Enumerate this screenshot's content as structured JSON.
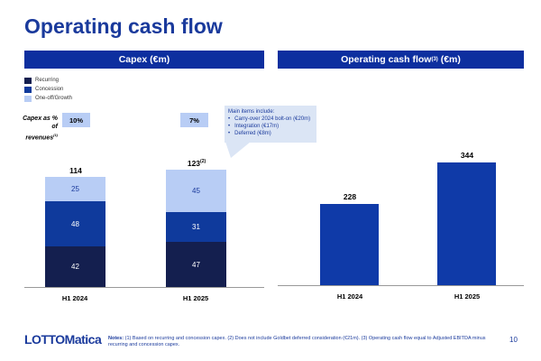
{
  "title": "Operating cash flow",
  "footer": {
    "logo": "LOTTOMatica",
    "notes_label": "Notes:",
    "notes": "(1) Based on recurring and concession capex. (2) Does not include Goldbet deferred consideration (€21m). (3) Operating cash flow equal to Adjusted EBITDA minus recurring and concession capex.",
    "page": "10"
  },
  "capex_pct": {
    "label": "Capex as % of revenues",
    "footnote": "(1)",
    "values": [
      "10%",
      "7%"
    ]
  },
  "callout": {
    "heading": "Main items include:",
    "items": [
      "Carry-over 2024 bolt-on (€20m)",
      "Integration (€17m)",
      "Deferred (€8m)"
    ]
  },
  "colors": {
    "recurring": "#141f4f",
    "concession": "#0f3a9c",
    "oneoff": "#b8cdf5",
    "ocf": "#0f3aa8"
  },
  "chart_data": [
    {
      "type": "bar",
      "stacked": true,
      "title": "Capex (€m)",
      "categories": [
        "H1 2024",
        "H1 2025"
      ],
      "series": [
        {
          "name": "Recurring",
          "values": [
            42,
            47
          ]
        },
        {
          "name": "Concession",
          "values": [
            48,
            31
          ]
        },
        {
          "name": "One-off/Growth",
          "values": [
            25,
            45
          ]
        }
      ],
      "totals": [
        "114",
        "123"
      ],
      "total_footnotes": [
        "",
        "(2)"
      ],
      "legend": "top-left",
      "ylim": [
        0,
        130
      ]
    },
    {
      "type": "bar",
      "title": "Operating cash flow",
      "title_footnote": "(3)",
      "title_suffix": " (€m)",
      "categories": [
        "H1 2024",
        "H1 2025"
      ],
      "values": [
        228,
        344
      ],
      "labels": [
        "228",
        "344"
      ],
      "ylim": [
        0,
        400
      ]
    }
  ]
}
